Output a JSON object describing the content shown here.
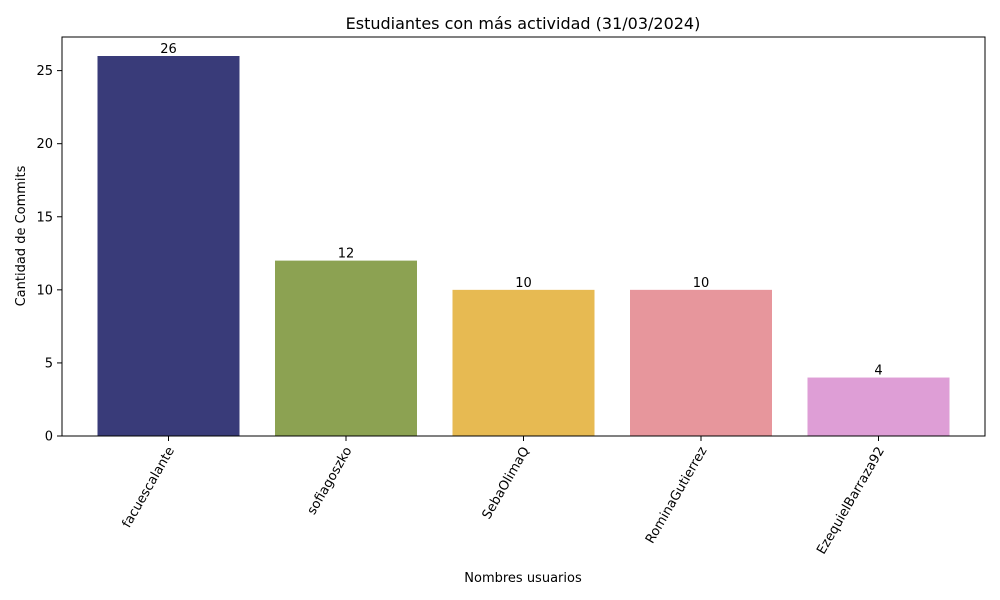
{
  "chart_data": {
    "type": "bar",
    "title": "Estudiantes con más actividad (31/03/2024)",
    "xlabel": "Nombres usuarios",
    "ylabel": "Cantidad de Commits",
    "categories": [
      "facuescalante",
      "sofiagoszko",
      "SebaOlimaQ",
      "RominaGutierrez",
      "EzequielBarraza92"
    ],
    "values": [
      26,
      12,
      10,
      10,
      4
    ],
    "colors": [
      "#393b79",
      "#8ca252",
      "#e7ba52",
      "#e7969c",
      "#de9ed6"
    ],
    "ylim": [
      0,
      27.3
    ],
    "yticks": [
      0,
      5,
      10,
      15,
      20,
      25
    ],
    "grid": false,
    "legend": false
  }
}
